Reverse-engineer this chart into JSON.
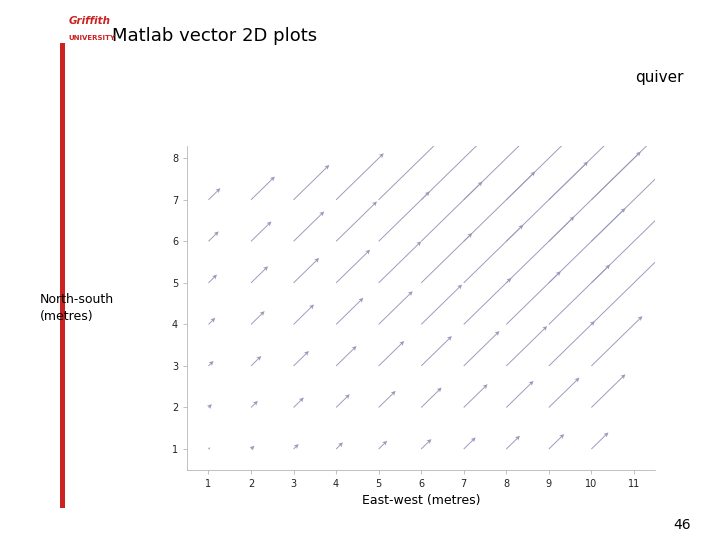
{
  "title": "Matlab vector 2D plots",
  "subtitle": "quiver",
  "xlabel": "East-west (metres)",
  "ylabel": "North-south\n(metres)",
  "xlim": [
    0.5,
    11.5
  ],
  "ylim": [
    0.5,
    8.3
  ],
  "xticks": [
    1,
    2,
    3,
    4,
    5,
    6,
    7,
    8,
    9,
    10,
    11
  ],
  "yticks": [
    1,
    2,
    3,
    4,
    5,
    6,
    7,
    8
  ],
  "background_color": "#ffffff",
  "arrow_color": "#9999bb",
  "page_number": "46",
  "red_bar_color": "#cc2222",
  "title_color": "#000000"
}
